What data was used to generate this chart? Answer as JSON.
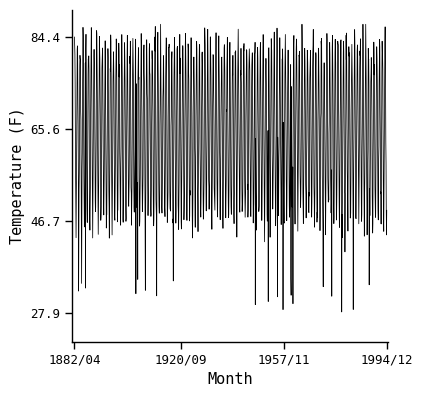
{
  "title": "",
  "xlabel": "Month",
  "ylabel": "Temperature (F)",
  "yticks": [
    27.9,
    46.7,
    65.6,
    84.4
  ],
  "xtick_labels": [
    "1882/04",
    "1920/09",
    "1957/11",
    "1994/12"
  ],
  "xtick_positions": [
    1882.25,
    1920.667,
    1957.833,
    1994.917
  ],
  "ylim": [
    22.0,
    90.0
  ],
  "xlim_start": 1881.5,
  "xlim_end": 1995.5,
  "start_year": 1882,
  "start_month": 4,
  "end_year": 1994,
  "end_month": 12,
  "mean_temp": 65.15,
  "amplitude": 18.0,
  "noise_std": 2.2,
  "line_color": "#000000",
  "line_width": 0.55,
  "background_color": "#ffffff"
}
